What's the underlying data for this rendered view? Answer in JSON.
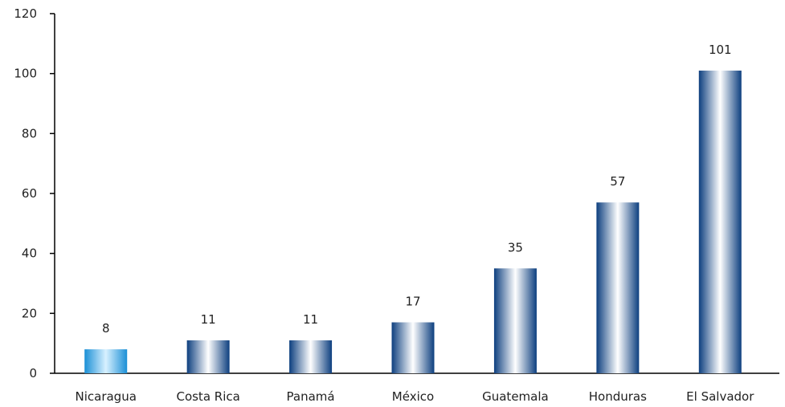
{
  "chart_data": {
    "type": "bar",
    "categories": [
      "Nicaragua",
      "Costa Rica",
      "Panamá",
      "México",
      "Guatemala",
      "Honduras",
      "El Salvador"
    ],
    "values": [
      8,
      11,
      11,
      17,
      35,
      57,
      101
    ],
    "data_labels": [
      "8",
      "11",
      "11",
      "17",
      "35",
      "57",
      "101"
    ],
    "ylim": [
      0,
      120
    ],
    "yticks": [
      0,
      20,
      40,
      60,
      80,
      100,
      120
    ],
    "ytick_labels": [
      "0",
      "20",
      "40",
      "60",
      "80",
      "100",
      "120"
    ],
    "grid": false,
    "legend": "none",
    "colors": {
      "default_bar_dark": "#0d3f7f",
      "default_bar_light": "#ffffff",
      "highlight_bar_dark": "#1a8fd6",
      "highlight_bar_light": "#d8f1ff",
      "axis": "#000000",
      "text": "#222222"
    },
    "highlight_category": "Nicaragua"
  }
}
